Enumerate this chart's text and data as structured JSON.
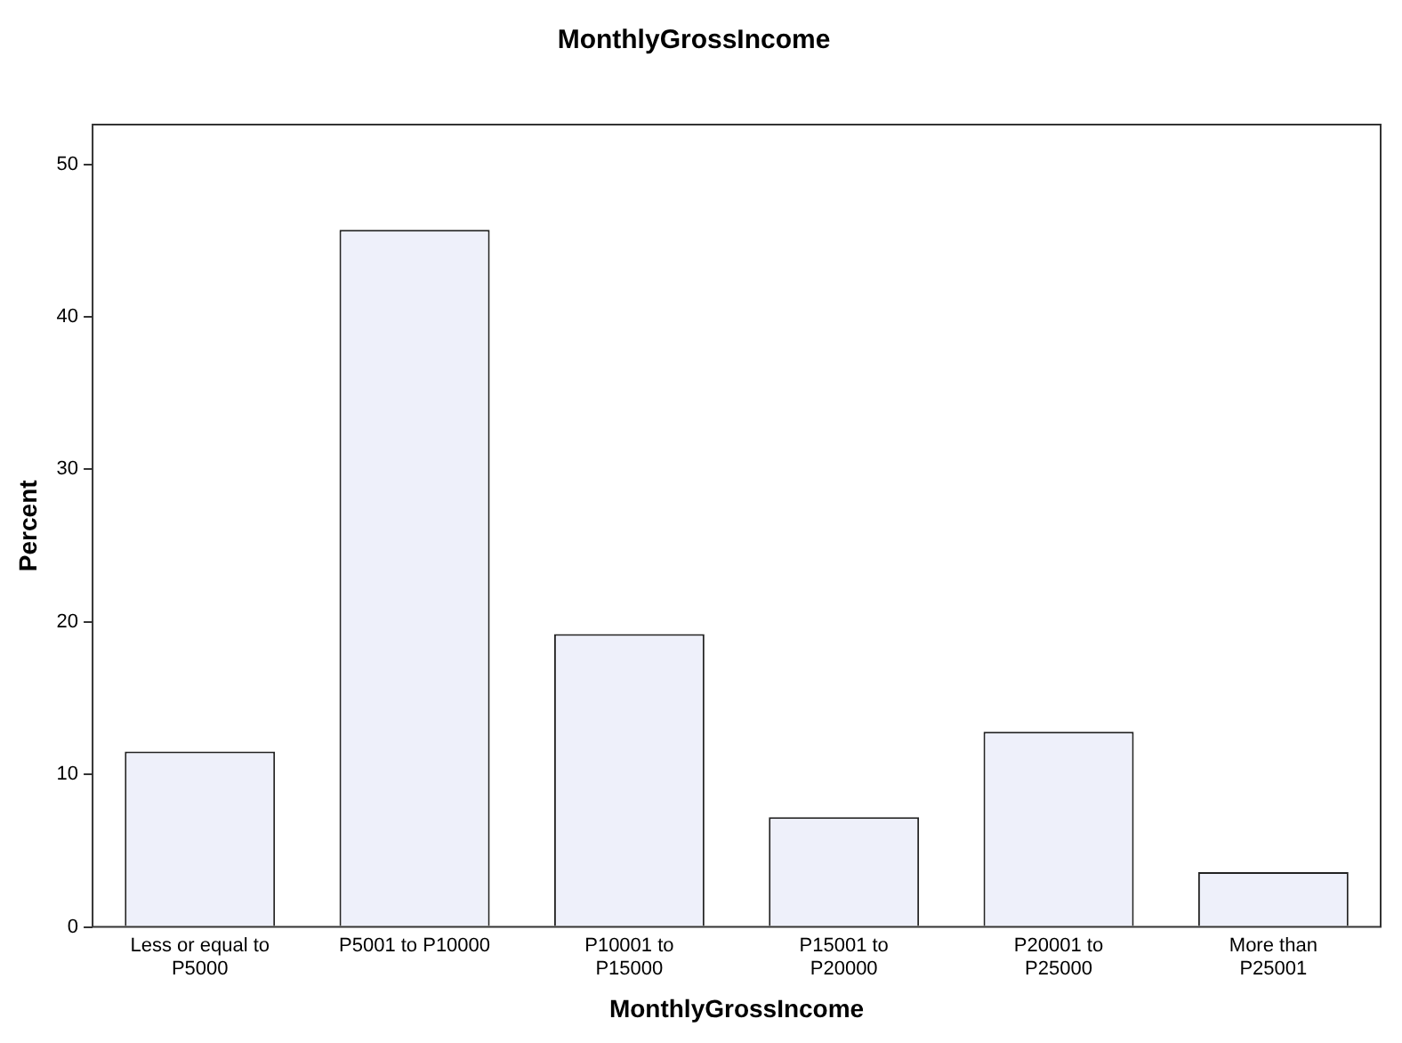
{
  "chart_data": {
    "type": "bar",
    "title": "MonthlyGrossIncome",
    "xlabel": "MonthlyGrossIncome",
    "ylabel": "Percent",
    "categories": [
      "Less or equal to\nP5000",
      "P5001 to P10000",
      "P10001 to\nP15000",
      "P15001 to\nP20000",
      "P20001 to\nP25000",
      "More than\nP25001"
    ],
    "values": [
      11.5,
      45.7,
      19.2,
      7.2,
      12.8,
      3.6
    ],
    "color": "#eef0fa",
    "ylim": [
      0,
      52.6
    ],
    "yticks": [
      0,
      10,
      20,
      30,
      40,
      50
    ],
    "grid": false,
    "legend": false
  }
}
